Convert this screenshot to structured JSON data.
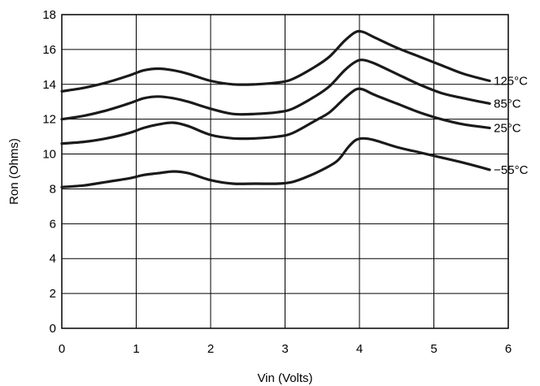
{
  "chart_data": {
    "type": "line",
    "title": "",
    "xlabel": "Vin (Volts)",
    "ylabel": "Ron (Ohms)",
    "xlim": [
      0,
      6
    ],
    "ylim": [
      0,
      18
    ],
    "xticks": [
      "0",
      "1",
      "2",
      "3",
      "4",
      "5",
      "6"
    ],
    "yticks": [
      "0",
      "2",
      "4",
      "6",
      "8",
      "10",
      "12",
      "14",
      "16",
      "18"
    ],
    "grid": true,
    "line_color": "#1a1a1a",
    "series": [
      {
        "name": "125°C",
        "x": [
          0,
          0.3,
          0.6,
          0.9,
          1.1,
          1.3,
          1.5,
          1.7,
          2.0,
          2.3,
          2.6,
          2.9,
          3.1,
          3.4,
          3.6,
          3.8,
          3.95,
          4.05,
          4.2,
          4.5,
          4.8,
          5.1,
          5.4,
          5.75
        ],
        "y": [
          13.6,
          13.8,
          14.1,
          14.5,
          14.8,
          14.9,
          14.8,
          14.6,
          14.2,
          14.0,
          14.0,
          14.1,
          14.3,
          15.0,
          15.6,
          16.5,
          17.0,
          17.0,
          16.7,
          16.1,
          15.6,
          15.1,
          14.6,
          14.2
        ]
      },
      {
        "name": "85°C",
        "x": [
          0,
          0.3,
          0.6,
          0.9,
          1.1,
          1.3,
          1.5,
          1.7,
          2.0,
          2.3,
          2.6,
          2.9,
          3.1,
          3.4,
          3.6,
          3.8,
          3.95,
          4.05,
          4.2,
          4.5,
          4.8,
          5.1,
          5.4,
          5.75
        ],
        "y": [
          12.0,
          12.2,
          12.5,
          12.9,
          13.2,
          13.3,
          13.2,
          13.0,
          12.6,
          12.3,
          12.3,
          12.4,
          12.6,
          13.3,
          13.9,
          14.8,
          15.3,
          15.4,
          15.2,
          14.6,
          14.0,
          13.5,
          13.2,
          12.9
        ]
      },
      {
        "name": "25°C",
        "x": [
          0,
          0.3,
          0.6,
          0.9,
          1.1,
          1.3,
          1.5,
          1.7,
          2.0,
          2.3,
          2.6,
          2.9,
          3.1,
          3.4,
          3.6,
          3.8,
          3.95,
          4.05,
          4.2,
          4.5,
          4.8,
          5.1,
          5.4,
          5.75
        ],
        "y": [
          10.6,
          10.7,
          10.9,
          11.2,
          11.5,
          11.7,
          11.8,
          11.6,
          11.1,
          10.9,
          10.9,
          11.0,
          11.2,
          11.9,
          12.4,
          13.2,
          13.7,
          13.7,
          13.4,
          12.9,
          12.4,
          12.0,
          11.7,
          11.5
        ]
      },
      {
        "name": "−55°C",
        "x": [
          0,
          0.3,
          0.6,
          0.9,
          1.1,
          1.3,
          1.5,
          1.7,
          2.0,
          2.3,
          2.6,
          2.9,
          3.1,
          3.3,
          3.5,
          3.7,
          3.85,
          3.95,
          4.05,
          4.2,
          4.5,
          4.8,
          5.1,
          5.4,
          5.75
        ],
        "y": [
          8.1,
          8.2,
          8.4,
          8.6,
          8.8,
          8.9,
          9.0,
          8.9,
          8.5,
          8.3,
          8.3,
          8.3,
          8.4,
          8.7,
          9.1,
          9.6,
          10.4,
          10.8,
          10.9,
          10.8,
          10.4,
          10.1,
          9.8,
          9.5,
          9.1
        ]
      }
    ]
  }
}
